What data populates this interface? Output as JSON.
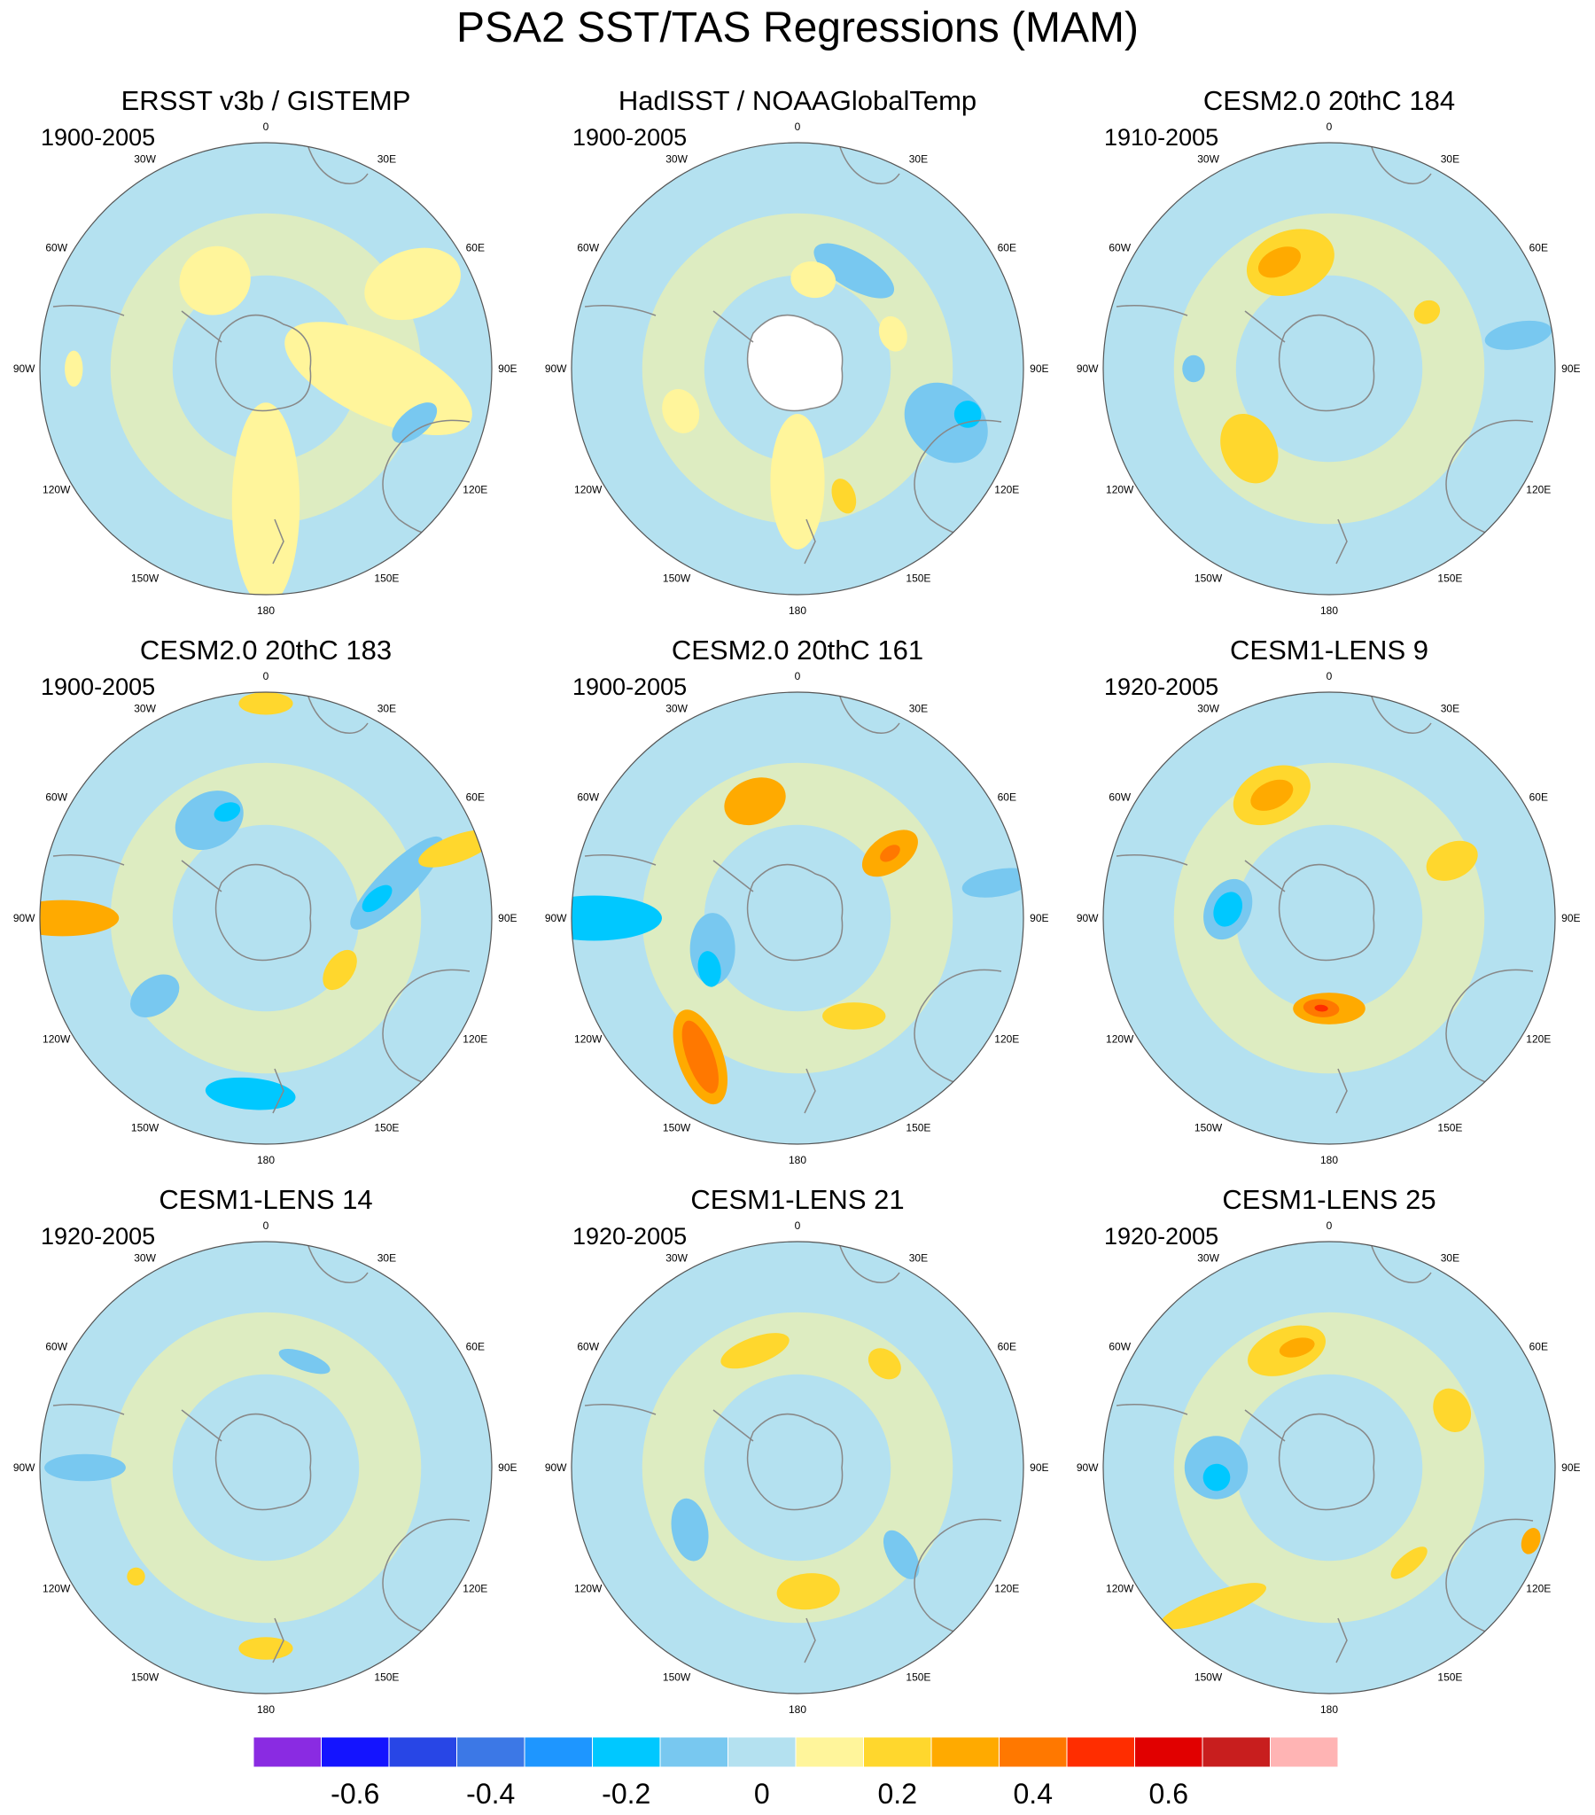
{
  "title": "PSA2 SST/TAS Regressions (MAM)",
  "colors": {
    "levels": [
      "#8a2be2",
      "#1414ff",
      "#2846e6",
      "#3c78e6",
      "#1e96ff",
      "#00c8ff",
      "#78c8f0",
      "#b4e1f0",
      "#fff59b",
      "#ffd72d",
      "#ffaa00",
      "#ff7800",
      "#ff2d00",
      "#e10000",
      "#c81e1e",
      "#ffb4b4"
    ],
    "coast": "#888888",
    "circle": "#555555",
    "missing": "#ffffff"
  },
  "colorbar": {
    "labels": [
      "-0.6",
      "-0.4",
      "-0.2",
      "0",
      "0.2",
      "0.4",
      "0.6"
    ]
  },
  "longitude_labels": [
    "0",
    "30E",
    "60E",
    "90E",
    "120E",
    "150E",
    "180",
    "150W",
    "120W",
    "90W",
    "60W",
    "30W"
  ],
  "panels": [
    {
      "title": "ERSST v3b / GISTEMP",
      "period": "1900-2005",
      "missing_center": false,
      "blobs": [
        {
          "lon": 180,
          "lat": 0.6,
          "rx": 0.15,
          "ry": 0.45,
          "rot": 0,
          "level": 8
        },
        {
          "lon": 95,
          "lat": 0.5,
          "rx": 0.18,
          "ry": 0.45,
          "rot": 20,
          "level": 8
        },
        {
          "lon": 60,
          "lat": 0.75,
          "rx": 0.15,
          "ry": 0.22,
          "rot": 10,
          "level": 8
        },
        {
          "lon": 330,
          "lat": 0.45,
          "rx": 0.16,
          "ry": 0.15,
          "rot": 0,
          "level": 8
        },
        {
          "lon": 110,
          "lat": 0.7,
          "rx": 0.12,
          "ry": 0.06,
          "rot": 30,
          "level": 6
        },
        {
          "lon": 270,
          "lat": 0.85,
          "rx": 0.08,
          "ry": 0.04,
          "rot": 0,
          "level": 8
        }
      ]
    },
    {
      "title": "HadISST / NOAAGlobalTemp",
      "period": "1900-2005",
      "missing_center": true,
      "blobs": [
        {
          "lon": 110,
          "lat": 0.7,
          "rx": 0.16,
          "ry": 0.2,
          "rot": 20,
          "level": 6
        },
        {
          "lon": 105,
          "lat": 0.78,
          "rx": 0.06,
          "ry": 0.06,
          "rot": 0,
          "level": 5
        },
        {
          "lon": 30,
          "lat": 0.5,
          "rx": 0.2,
          "ry": 0.08,
          "rot": 0,
          "level": 6
        },
        {
          "lon": 180,
          "lat": 0.5,
          "rx": 0.12,
          "ry": 0.3,
          "rot": 0,
          "level": 8
        },
        {
          "lon": 70,
          "lat": 0.45,
          "rx": 0.08,
          "ry": 0.06,
          "rot": 0,
          "level": 8
        },
        {
          "lon": 10,
          "lat": 0.4,
          "rx": 0.1,
          "ry": 0.08,
          "rot": 0,
          "level": 8
        },
        {
          "lon": 250,
          "lat": 0.55,
          "rx": 0.1,
          "ry": 0.08,
          "rot": 0,
          "level": 8
        },
        {
          "lon": 160,
          "lat": 0.6,
          "rx": 0.05,
          "ry": 0.08,
          "rot": 0,
          "level": 9
        }
      ]
    },
    {
      "title": "CESM2.0 20thC 184",
      "period": "1910-2005",
      "missing_center": false,
      "blobs": [
        {
          "lon": 340,
          "lat": 0.5,
          "rx": 0.2,
          "ry": 0.14,
          "rot": 0,
          "level": 9
        },
        {
          "lon": 335,
          "lat": 0.52,
          "rx": 0.1,
          "ry": 0.06,
          "rot": 0,
          "level": 10
        },
        {
          "lon": 225,
          "lat": 0.5,
          "rx": 0.16,
          "ry": 0.12,
          "rot": 20,
          "level": 9
        },
        {
          "lon": 60,
          "lat": 0.5,
          "rx": 0.05,
          "ry": 0.06,
          "rot": 0,
          "level": 9
        },
        {
          "lon": 80,
          "lat": 0.85,
          "rx": 0.06,
          "ry": 0.15,
          "rot": 0,
          "level": 6
        },
        {
          "lon": 270,
          "lat": 0.6,
          "rx": 0.06,
          "ry": 0.05,
          "rot": 0,
          "level": 6
        }
      ]
    },
    {
      "title": "CESM2.0 20thC 183",
      "period": "1900-2005",
      "missing_center": false,
      "blobs": [
        {
          "lon": 330,
          "lat": 0.5,
          "rx": 0.16,
          "ry": 0.12,
          "rot": 0,
          "level": 6
        },
        {
          "lon": 340,
          "lat": 0.5,
          "rx": 0.06,
          "ry": 0.04,
          "rot": 0,
          "level": 5
        },
        {
          "lon": 75,
          "lat": 0.6,
          "rx": 0.28,
          "ry": 0.08,
          "rot": 60,
          "level": 6
        },
        {
          "lon": 80,
          "lat": 0.5,
          "rx": 0.08,
          "ry": 0.04,
          "rot": 60,
          "level": 5
        },
        {
          "lon": 185,
          "lat": 0.78,
          "rx": 0.2,
          "ry": 0.07,
          "rot": 0,
          "level": 5
        },
        {
          "lon": 235,
          "lat": 0.6,
          "rx": 0.08,
          "ry": 0.12,
          "rot": 0,
          "level": 6
        },
        {
          "lon": 270,
          "lat": 0.9,
          "rx": 0.08,
          "ry": 0.25,
          "rot": 0,
          "level": 10
        },
        {
          "lon": 70,
          "lat": 0.9,
          "rx": 0.06,
          "ry": 0.18,
          "rot": 0,
          "level": 9
        },
        {
          "lon": 125,
          "lat": 0.4,
          "rx": 0.1,
          "ry": 0.06,
          "rot": 0,
          "level": 9
        },
        {
          "lon": 0,
          "lat": 0.95,
          "rx": 0.12,
          "ry": 0.05,
          "rot": 0,
          "level": 9
        }
      ]
    },
    {
      "title": "CESM2.0 20thC 161",
      "period": "1900-2005",
      "missing_center": false,
      "blobs": [
        {
          "lon": 215,
          "lat": 0.75,
          "rx": 0.22,
          "ry": 0.1,
          "rot": 35,
          "level": 10
        },
        {
          "lon": 215,
          "lat": 0.75,
          "rx": 0.17,
          "ry": 0.06,
          "rot": 35,
          "level": 11
        },
        {
          "lon": 270,
          "lat": 0.9,
          "rx": 0.1,
          "ry": 0.3,
          "rot": 0,
          "level": 5
        },
        {
          "lon": 250,
          "lat": 0.4,
          "rx": 0.16,
          "ry": 0.1,
          "rot": 20,
          "level": 6
        },
        {
          "lon": 240,
          "lat": 0.45,
          "rx": 0.08,
          "ry": 0.05,
          "rot": 20,
          "level": 5
        },
        {
          "lon": 340,
          "lat": 0.55,
          "rx": 0.14,
          "ry": 0.1,
          "rot": 0,
          "level": 10
        },
        {
          "lon": 55,
          "lat": 0.5,
          "rx": 0.08,
          "ry": 0.14,
          "rot": 0,
          "level": 10
        },
        {
          "lon": 55,
          "lat": 0.5,
          "rx": 0.03,
          "ry": 0.05,
          "rot": 0,
          "level": 11
        },
        {
          "lon": 80,
          "lat": 0.9,
          "rx": 0.06,
          "ry": 0.16,
          "rot": 0,
          "level": 6
        },
        {
          "lon": 150,
          "lat": 0.5,
          "rx": 0.14,
          "ry": 0.06,
          "rot": 30,
          "level": 9
        }
      ]
    },
    {
      "title": "CESM1-LENS 9",
      "period": "1920-2005",
      "missing_center": false,
      "blobs": [
        {
          "lon": 335,
          "lat": 0.6,
          "rx": 0.18,
          "ry": 0.12,
          "rot": 0,
          "level": 9
        },
        {
          "lon": 335,
          "lat": 0.6,
          "rx": 0.1,
          "ry": 0.06,
          "rot": 0,
          "level": 10
        },
        {
          "lon": 275,
          "lat": 0.45,
          "rx": 0.14,
          "ry": 0.1,
          "rot": 20,
          "level": 6
        },
        {
          "lon": 275,
          "lat": 0.45,
          "rx": 0.08,
          "ry": 0.06,
          "rot": 20,
          "level": 5
        },
        {
          "lon": 180,
          "lat": 0.4,
          "rx": 0.16,
          "ry": 0.07,
          "rot": 0,
          "level": 10
        },
        {
          "lon": 185,
          "lat": 0.4,
          "rx": 0.08,
          "ry": 0.04,
          "rot": 0,
          "level": 11
        },
        {
          "lon": 185,
          "lat": 0.4,
          "rx": 0.03,
          "ry": 0.015,
          "rot": 0,
          "level": 12
        },
        {
          "lon": 65,
          "lat": 0.6,
          "rx": 0.08,
          "ry": 0.12,
          "rot": 0,
          "level": 9
        }
      ]
    },
    {
      "title": "CESM1-LENS 14",
      "period": "1920-2005",
      "missing_center": false,
      "blobs": [
        {
          "lon": 180,
          "lat": 0.8,
          "rx": 0.12,
          "ry": 0.05,
          "rot": 0,
          "level": 9
        },
        {
          "lon": 230,
          "lat": 0.75,
          "rx": 0.04,
          "ry": 0.04,
          "rot": 0,
          "level": 9
        },
        {
          "lon": 20,
          "lat": 0.5,
          "rx": 0.12,
          "ry": 0.04,
          "rot": 0,
          "level": 6
        },
        {
          "lon": 270,
          "lat": 0.8,
          "rx": 0.06,
          "ry": 0.18,
          "rot": 0,
          "level": 6
        }
      ]
    },
    {
      "title": "CESM1-LENS 21",
      "period": "1920-2005",
      "missing_center": false,
      "blobs": [
        {
          "lon": 340,
          "lat": 0.55,
          "rx": 0.16,
          "ry": 0.06,
          "rot": 0,
          "level": 9
        },
        {
          "lon": 175,
          "lat": 0.55,
          "rx": 0.14,
          "ry": 0.08,
          "rot": 0,
          "level": 9
        },
        {
          "lon": 240,
          "lat": 0.55,
          "rx": 0.14,
          "ry": 0.08,
          "rot": 20,
          "level": 6
        },
        {
          "lon": 40,
          "lat": 0.6,
          "rx": 0.08,
          "ry": 0.06,
          "rot": 0,
          "level": 9
        },
        {
          "lon": 130,
          "lat": 0.6,
          "rx": 0.06,
          "ry": 0.12,
          "rot": 20,
          "level": 6
        }
      ]
    },
    {
      "title": "CESM1-LENS 25",
      "period": "1920-2005",
      "missing_center": false,
      "blobs": [
        {
          "lon": 340,
          "lat": 0.55,
          "rx": 0.18,
          "ry": 0.1,
          "rot": 0,
          "level": 9
        },
        {
          "lon": 345,
          "lat": 0.55,
          "rx": 0.08,
          "ry": 0.04,
          "rot": 0,
          "level": 10
        },
        {
          "lon": 270,
          "lat": 0.5,
          "rx": 0.14,
          "ry": 0.14,
          "rot": 0,
          "level": 6
        },
        {
          "lon": 265,
          "lat": 0.5,
          "rx": 0.06,
          "ry": 0.06,
          "rot": 0,
          "level": 5
        },
        {
          "lon": 220,
          "lat": 0.8,
          "rx": 0.06,
          "ry": 0.25,
          "rot": 30,
          "level": 9
        },
        {
          "lon": 65,
          "lat": 0.6,
          "rx": 0.1,
          "ry": 0.08,
          "rot": 0,
          "level": 9
        },
        {
          "lon": 110,
          "lat": 0.95,
          "rx": 0.06,
          "ry": 0.04,
          "rot": 0,
          "level": 10
        },
        {
          "lon": 140,
          "lat": 0.55,
          "rx": 0.1,
          "ry": 0.04,
          "rot": 0,
          "level": 9
        }
      ]
    }
  ]
}
